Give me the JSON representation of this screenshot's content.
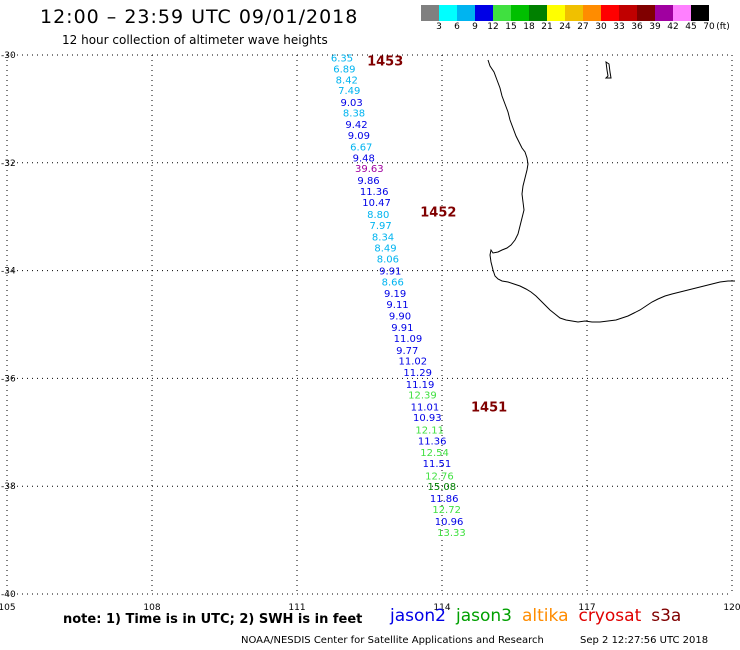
{
  "header": {
    "title": "12:00 – 23:59 UTC 09/01/2018",
    "subtitle": "12 hour collection of altimeter wave heights"
  },
  "colorbar": {
    "unit": "(ft)",
    "cells": [
      {
        "color": "#808080",
        "label": "3"
      },
      {
        "color": "#00ffff",
        "label": "6"
      },
      {
        "color": "#00b4f0",
        "label": "9"
      },
      {
        "color": "#0000e6",
        "label": "12"
      },
      {
        "color": "#40e040",
        "label": "15"
      },
      {
        "color": "#00c000",
        "label": "18"
      },
      {
        "color": "#008000",
        "label": "21"
      },
      {
        "color": "#ffff00",
        "label": "24"
      },
      {
        "color": "#f0c000",
        "label": "27"
      },
      {
        "color": "#ff8c00",
        "label": "30"
      },
      {
        "color": "#ff0000",
        "label": "33"
      },
      {
        "color": "#c00000",
        "label": "36"
      },
      {
        "color": "#800000",
        "label": "39"
      },
      {
        "color": "#a000a0",
        "label": "42"
      },
      {
        "color": "#ff80ff",
        "label": "45"
      },
      {
        "color": "#000000",
        "label": "70"
      }
    ]
  },
  "map": {
    "lon_range": [
      105,
      120
    ],
    "lat_range": [
      -40,
      -30
    ],
    "lon_ticks": [
      "105",
      "108",
      "111",
      "114",
      "117",
      "120"
    ],
    "lat_ticks": [
      "-30",
      "-32",
      "-34",
      "-36",
      "-38",
      "-40"
    ],
    "grid": true,
    "track_labels": [
      {
        "text": "1453",
        "lon": 112.45,
        "lat": -30.1
      },
      {
        "text": "1452",
        "lon": 113.55,
        "lat": -32.9
      },
      {
        "text": "1451",
        "lon": 114.6,
        "lat": -36.52
      }
    ],
    "observations": [
      {
        "v": "6.35",
        "lon": 111.7,
        "lat": -30.05,
        "c": "#00b4f0"
      },
      {
        "v": "6.89",
        "lon": 111.75,
        "lat": -30.25,
        "c": "#00b4f0"
      },
      {
        "v": "8.42",
        "lon": 111.8,
        "lat": -30.45,
        "c": "#00b4f0"
      },
      {
        "v": "7.49",
        "lon": 111.85,
        "lat": -30.65,
        "c": "#00b4f0"
      },
      {
        "v": "9.03",
        "lon": 111.9,
        "lat": -30.87,
        "c": "#0000e6"
      },
      {
        "v": "8.38",
        "lon": 111.95,
        "lat": -31.07,
        "c": "#00b4f0"
      },
      {
        "v": "9.42",
        "lon": 112.0,
        "lat": -31.28,
        "c": "#0000e6"
      },
      {
        "v": "9.09",
        "lon": 112.05,
        "lat": -31.48,
        "c": "#0000e6"
      },
      {
        "v": "6.67",
        "lon": 112.1,
        "lat": -31.7,
        "c": "#00b4f0"
      },
      {
        "v": "9.48",
        "lon": 112.15,
        "lat": -31.9,
        "c": "#0000e6"
      },
      {
        "v": "39.63",
        "lon": 112.2,
        "lat": -32.1,
        "c": "#a000a0"
      },
      {
        "v": "9.86",
        "lon": 112.25,
        "lat": -32.32,
        "c": "#0000e6"
      },
      {
        "v": "11.36",
        "lon": 112.3,
        "lat": -32.52,
        "c": "#0000e6"
      },
      {
        "v": "10.47",
        "lon": 112.35,
        "lat": -32.73,
        "c": "#0000e6"
      },
      {
        "v": "8.80",
        "lon": 112.45,
        "lat": -32.95,
        "c": "#00b4f0"
      },
      {
        "v": "7.97",
        "lon": 112.5,
        "lat": -33.15,
        "c": "#00b4f0"
      },
      {
        "v": "8.34",
        "lon": 112.55,
        "lat": -33.37,
        "c": "#00b4f0"
      },
      {
        "v": "8.49",
        "lon": 112.6,
        "lat": -33.57,
        "c": "#00b4f0"
      },
      {
        "v": "8.06",
        "lon": 112.65,
        "lat": -33.78,
        "c": "#00b4f0"
      },
      {
        "v": "9.91",
        "lon": 112.7,
        "lat": -34.0,
        "c": "#0000e6"
      },
      {
        "v": "8.66",
        "lon": 112.75,
        "lat": -34.2,
        "c": "#00b4f0"
      },
      {
        "v": "9.19",
        "lon": 112.8,
        "lat": -34.42,
        "c": "#0000e6"
      },
      {
        "v": "9.11",
        "lon": 112.85,
        "lat": -34.62,
        "c": "#0000e6"
      },
      {
        "v": "9.90",
        "lon": 112.9,
        "lat": -34.83,
        "c": "#0000e6"
      },
      {
        "v": "9.91",
        "lon": 112.95,
        "lat": -35.05,
        "c": "#0000e6"
      },
      {
        "v": "11.09",
        "lon": 113.0,
        "lat": -35.25,
        "c": "#0000e6"
      },
      {
        "v": "9.77",
        "lon": 113.05,
        "lat": -35.47,
        "c": "#0000e6"
      },
      {
        "v": "11.02",
        "lon": 113.1,
        "lat": -35.67,
        "c": "#0000e6"
      },
      {
        "v": "11.29",
        "lon": 113.2,
        "lat": -35.88,
        "c": "#0000e6"
      },
      {
        "v": "11.19",
        "lon": 113.25,
        "lat": -36.1,
        "c": "#0000e6"
      },
      {
        "v": "12.39",
        "lon": 113.3,
        "lat": -36.3,
        "c": "#40e040"
      },
      {
        "v": "11.01",
        "lon": 113.35,
        "lat": -36.52,
        "c": "#0000e6"
      },
      {
        "v": "10.93",
        "lon": 113.4,
        "lat": -36.72,
        "c": "#0000e6"
      },
      {
        "v": "12.11",
        "lon": 113.45,
        "lat": -36.95,
        "c": "#40e040"
      },
      {
        "v": "11.36",
        "lon": 113.5,
        "lat": -37.15,
        "c": "#0000e6"
      },
      {
        "v": "12.54",
        "lon": 113.55,
        "lat": -37.37,
        "c": "#40e040"
      },
      {
        "v": "11.51",
        "lon": 113.6,
        "lat": -37.57,
        "c": "#0000e6"
      },
      {
        "v": "12.76",
        "lon": 113.65,
        "lat": -37.8,
        "c": "#40e040"
      },
      {
        "v": "15.08",
        "lon": 113.7,
        "lat": -38.0,
        "c": "#008000"
      },
      {
        "v": "11.86",
        "lon": 113.75,
        "lat": -38.22,
        "c": "#0000e6"
      },
      {
        "v": "12.72",
        "lon": 113.8,
        "lat": -38.42,
        "c": "#40e040"
      },
      {
        "v": "10.96",
        "lon": 113.85,
        "lat": -38.65,
        "c": "#0000e6"
      },
      {
        "v": "13.33",
        "lon": 113.9,
        "lat": -38.85,
        "c": "#40e040"
      }
    ],
    "coastline_color": "#000000",
    "grid_color": "#000000",
    "track_label_color": "#800000"
  },
  "footer": {
    "note": "note:  1) Time is in UTC;  2) SWH is in feet",
    "legend": [
      {
        "name": "jason2",
        "color": "#0000e6"
      },
      {
        "name": "jason3",
        "color": "#00a000"
      },
      {
        "name": "altika",
        "color": "#ff8c00"
      },
      {
        "name": "cryosat",
        "color": "#e00000"
      },
      {
        "name": "s3a",
        "color": "#800000"
      }
    ],
    "credit": "NOAA/NESDIS Center for Satellite Applications and Research",
    "timestamp": "Sep  2 12:27:56 UTC 2018"
  }
}
